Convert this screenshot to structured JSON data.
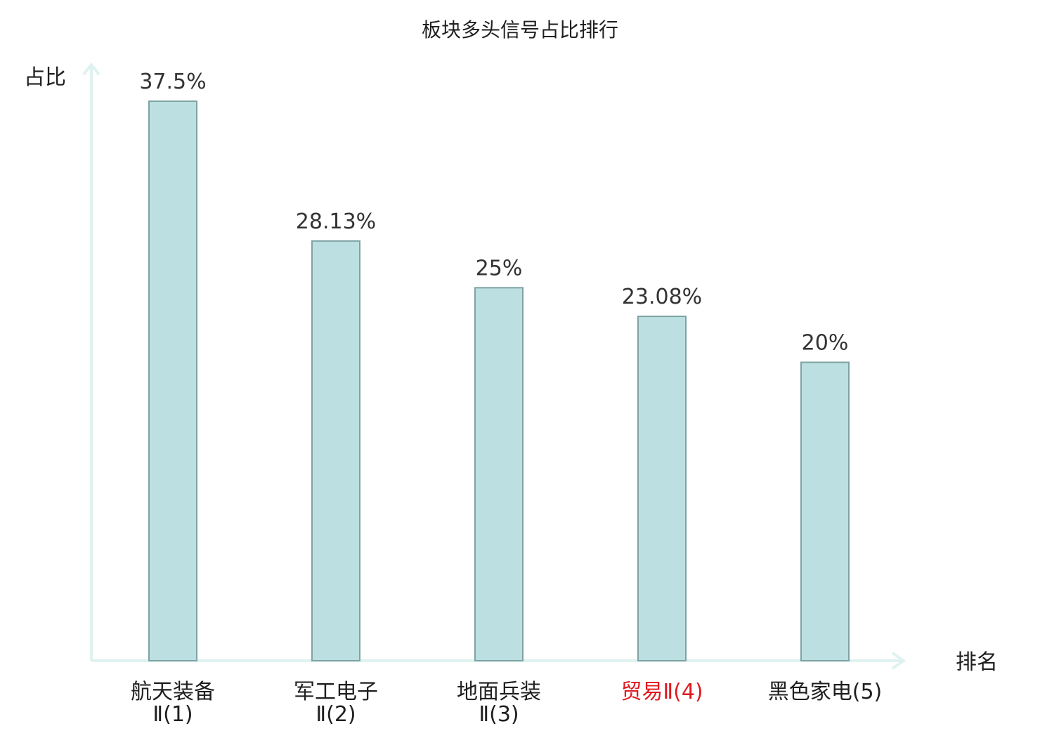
{
  "chart_data": {
    "type": "bar",
    "title": "板块多头信号占比排行",
    "ylabel": "占比",
    "xlabel": "排名",
    "ylim": [
      0,
      37.5
    ],
    "grid": false,
    "categories": [
      {
        "line1": "航天装备",
        "line2": "Ⅱ(1)",
        "highlight": false
      },
      {
        "line1": "军工电子",
        "line2": "Ⅱ(2)",
        "highlight": false
      },
      {
        "line1": "地面兵装",
        "line2": "Ⅱ(3)",
        "highlight": false
      },
      {
        "line1": "贸易Ⅱ(4)",
        "line2": "",
        "highlight": true
      },
      {
        "line1": "黑色家电(5)",
        "line2": "",
        "highlight": false
      }
    ],
    "values": [
      37.5,
      28.13,
      25,
      23.08,
      20
    ],
    "value_labels": [
      "37.5%",
      "28.13%",
      "25%",
      "23.08%",
      "20%"
    ]
  },
  "colors": {
    "bar_fill": "#bce0e1",
    "bar_stroke": "#7fa3a4",
    "axis": "#dff2ef",
    "label": "#1f1f1f",
    "highlight": "#e0191e"
  }
}
